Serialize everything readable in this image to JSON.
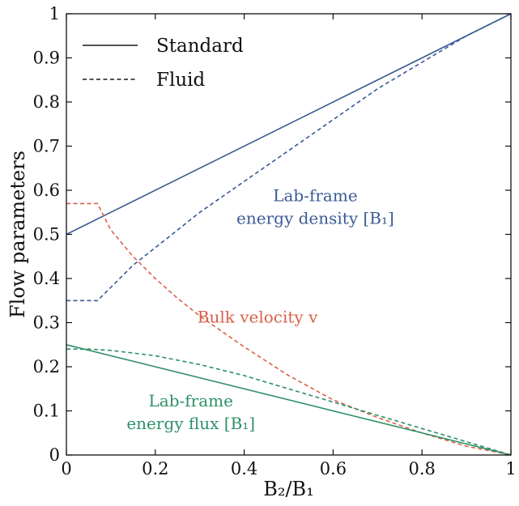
{
  "chart_data": {
    "type": "line",
    "xlabel": "B₂/B₁",
    "ylabel": "Flow parameters",
    "xlim": [
      0,
      1
    ],
    "ylim": [
      0,
      1
    ],
    "xticks": [
      0,
      0.2,
      0.4,
      0.6,
      0.8,
      1
    ],
    "xtick_labels": [
      "0",
      "0.2",
      "0.4",
      "0.6",
      "0.8",
      "1"
    ],
    "yticks": [
      0,
      0.1,
      0.2,
      0.3,
      0.4,
      0.5,
      0.6,
      0.7,
      0.8,
      0.9,
      1
    ],
    "ytick_labels": [
      "0",
      "0.1",
      "0.2",
      "0.3",
      "0.4",
      "0.5",
      "0.6",
      "0.7",
      "0.8",
      "0.9",
      "1"
    ],
    "grid": false,
    "legend_position": "top-left",
    "legend": [
      {
        "label": "Standard",
        "style": "solid"
      },
      {
        "label": "Fluid",
        "style": "dashed"
      }
    ],
    "colors": {
      "energy_density": "#3a5a93",
      "velocity": "#d9604a",
      "energy_flux": "#2e9068",
      "legend": "#1a1a1a"
    },
    "annotations": [
      {
        "id": "energy-density",
        "lines": [
          "Lab-frame",
          "energy density [B₁]"
        ],
        "color": "#3a5a93",
        "at": [
          0.56,
          0.575
        ]
      },
      {
        "id": "bulk-velocity",
        "lines": [
          "Bulk velocity v"
        ],
        "color": "#d9604a",
        "at": [
          0.43,
          0.3
        ]
      },
      {
        "id": "energy-flux",
        "lines": [
          "Lab-frame",
          "energy flux [B₁]"
        ],
        "color": "#2e9068",
        "at": [
          0.28,
          0.11
        ]
      }
    ],
    "series": [
      {
        "id": "energy-density-standard",
        "color": "#3a5a93",
        "style": "solid",
        "x": [
          0,
          1
        ],
        "y": [
          0.5,
          1.0
        ]
      },
      {
        "id": "energy-density-fluid",
        "color": "#3a5a93",
        "style": "dashed",
        "x": [
          0,
          0.07,
          0.1,
          0.15,
          0.2,
          0.3,
          0.4,
          0.5,
          0.6,
          0.7,
          0.8,
          0.9,
          1.0
        ],
        "y": [
          0.35,
          0.35,
          0.38,
          0.43,
          0.47,
          0.55,
          0.62,
          0.69,
          0.76,
          0.83,
          0.89,
          0.95,
          1.0
        ]
      },
      {
        "id": "velocity-fluid",
        "color": "#d9604a",
        "style": "dashed",
        "x": [
          0,
          0.07,
          0.1,
          0.15,
          0.2,
          0.25,
          0.3,
          0.4,
          0.5,
          0.6,
          0.7,
          0.8,
          0.9,
          1.0
        ],
        "y": [
          0.57,
          0.57,
          0.51,
          0.45,
          0.4,
          0.355,
          0.315,
          0.245,
          0.18,
          0.125,
          0.085,
          0.05,
          0.02,
          0.0
        ]
      },
      {
        "id": "energy-flux-standard",
        "color": "#2e9068",
        "style": "solid",
        "x": [
          0,
          1
        ],
        "y": [
          0.25,
          0.0
        ]
      },
      {
        "id": "energy-flux-fluid",
        "color": "#2e9068",
        "style": "dashed",
        "x": [
          0,
          0.05,
          0.1,
          0.2,
          0.3,
          0.4,
          0.5,
          0.6,
          0.7,
          0.8,
          0.9,
          1.0
        ],
        "y": [
          0.24,
          0.24,
          0.237,
          0.225,
          0.205,
          0.18,
          0.15,
          0.12,
          0.09,
          0.06,
          0.03,
          0.0
        ]
      }
    ]
  }
}
